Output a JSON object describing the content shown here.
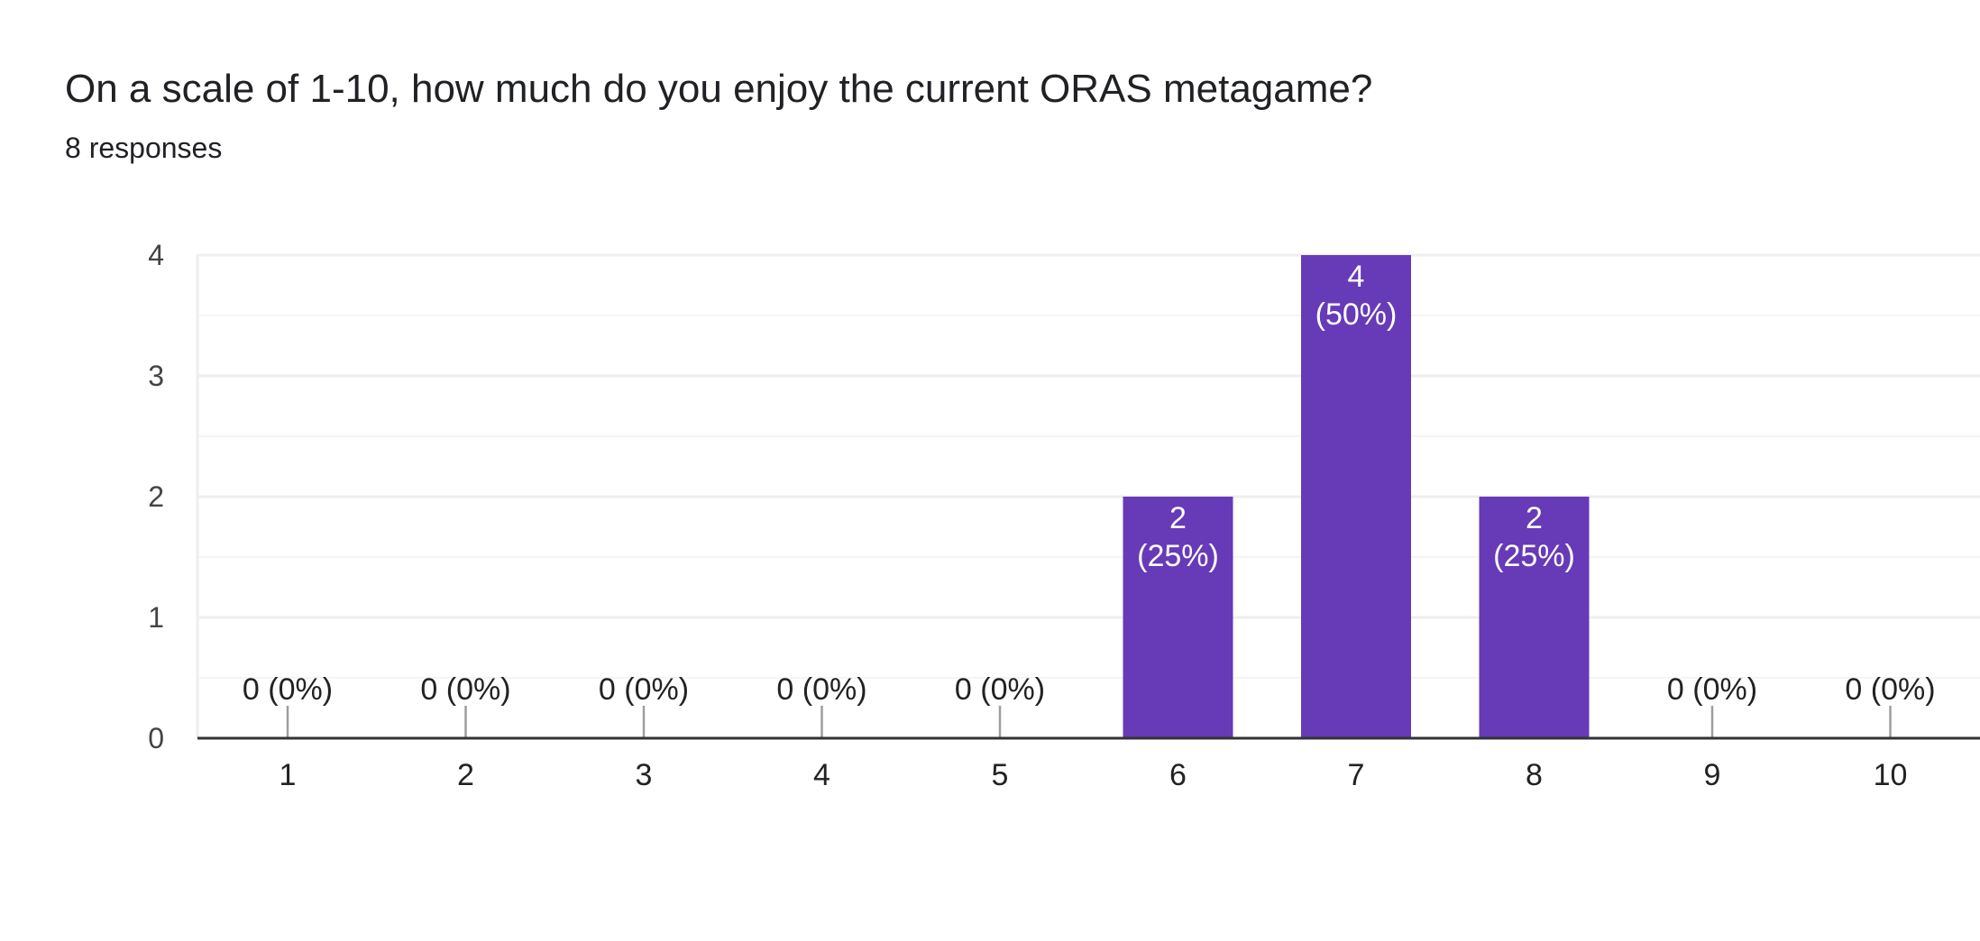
{
  "question": {
    "title": "On a scale of 1-10, how much do you enjoy the current ORAS metagame?",
    "response_count": "8 responses"
  },
  "colors": {
    "bar": "#673ab7",
    "gridline": "#eeeeee",
    "minor_gridline": "#f5f5f5",
    "axis": "#333333",
    "zero_tick": "#9e9e9e",
    "label_inside": "#ffffff",
    "label_outside": "#222222",
    "tick_label": "#444444"
  },
  "chart_data": {
    "type": "bar",
    "categories": [
      "1",
      "2",
      "3",
      "4",
      "5",
      "6",
      "7",
      "8",
      "9",
      "10"
    ],
    "values": [
      0,
      0,
      0,
      0,
      0,
      2,
      4,
      2,
      0,
      0
    ],
    "data_labels": [
      [
        "0 (0%)"
      ],
      [
        "0 (0%)"
      ],
      [
        "0 (0%)"
      ],
      [
        "0 (0%)"
      ],
      [
        "0 (0%)"
      ],
      [
        "2",
        "(25%)"
      ],
      [
        "4",
        "(50%)"
      ],
      [
        "2",
        "(25%)"
      ],
      [
        "0 (0%)"
      ],
      [
        "0 (0%)"
      ]
    ],
    "title": "On a scale of 1-10, how much do you enjoy the current ORAS metagame?",
    "xlabel": "",
    "ylabel": "",
    "ylim": [
      0,
      4
    ],
    "yticks": [
      "0",
      "1",
      "2",
      "3",
      "4"
    ],
    "grid": true,
    "legend": "none"
  }
}
